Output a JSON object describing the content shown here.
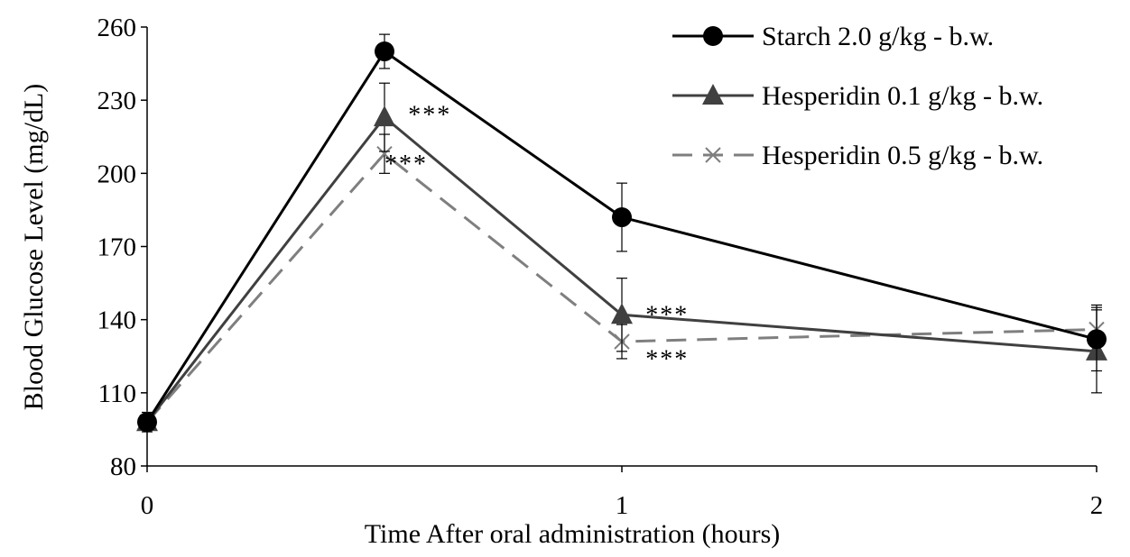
{
  "chart_data": {
    "type": "line",
    "xlabel": "Time After oral administration (hours)",
    "ylabel": "Blood Glucose Level (mg/dL)",
    "xlim": [
      0,
      2
    ],
    "ylim": [
      80,
      260
    ],
    "xticks": [
      0,
      1,
      2
    ],
    "yticks": [
      80,
      110,
      140,
      170,
      200,
      230,
      260
    ],
    "grid": false,
    "legend_position": "top-right",
    "x": [
      0,
      0.5,
      1,
      2
    ],
    "series": [
      {
        "name": "Starch 2.0 g/kg - b.w.",
        "marker": "circle",
        "line": "solid",
        "color": "#000000",
        "values": [
          98,
          250,
          182,
          132
        ],
        "errors": [
          3,
          7,
          14,
          13
        ]
      },
      {
        "name": "Hesperidin 0.1 g/kg - b.w.",
        "marker": "triangle",
        "line": "solid",
        "color": "#404040",
        "values": [
          98,
          223,
          142,
          127
        ],
        "errors": [
          4,
          14,
          15,
          17
        ]
      },
      {
        "name": "Hesperidin 0.5 g/kg - b.w.",
        "marker": "x",
        "line": "dashed",
        "color": "#7f7f7f",
        "values": [
          98,
          208,
          131,
          136
        ],
        "errors": [
          3,
          8,
          7,
          10
        ]
      }
    ],
    "annotations": [
      {
        "text": "***",
        "x": 0.55,
        "y": 225
      },
      {
        "text": "***",
        "x": 0.5,
        "y": 205
      },
      {
        "text": "***",
        "x": 1.05,
        "y": 143
      },
      {
        "text": "***",
        "x": 1.05,
        "y": 125
      }
    ]
  }
}
